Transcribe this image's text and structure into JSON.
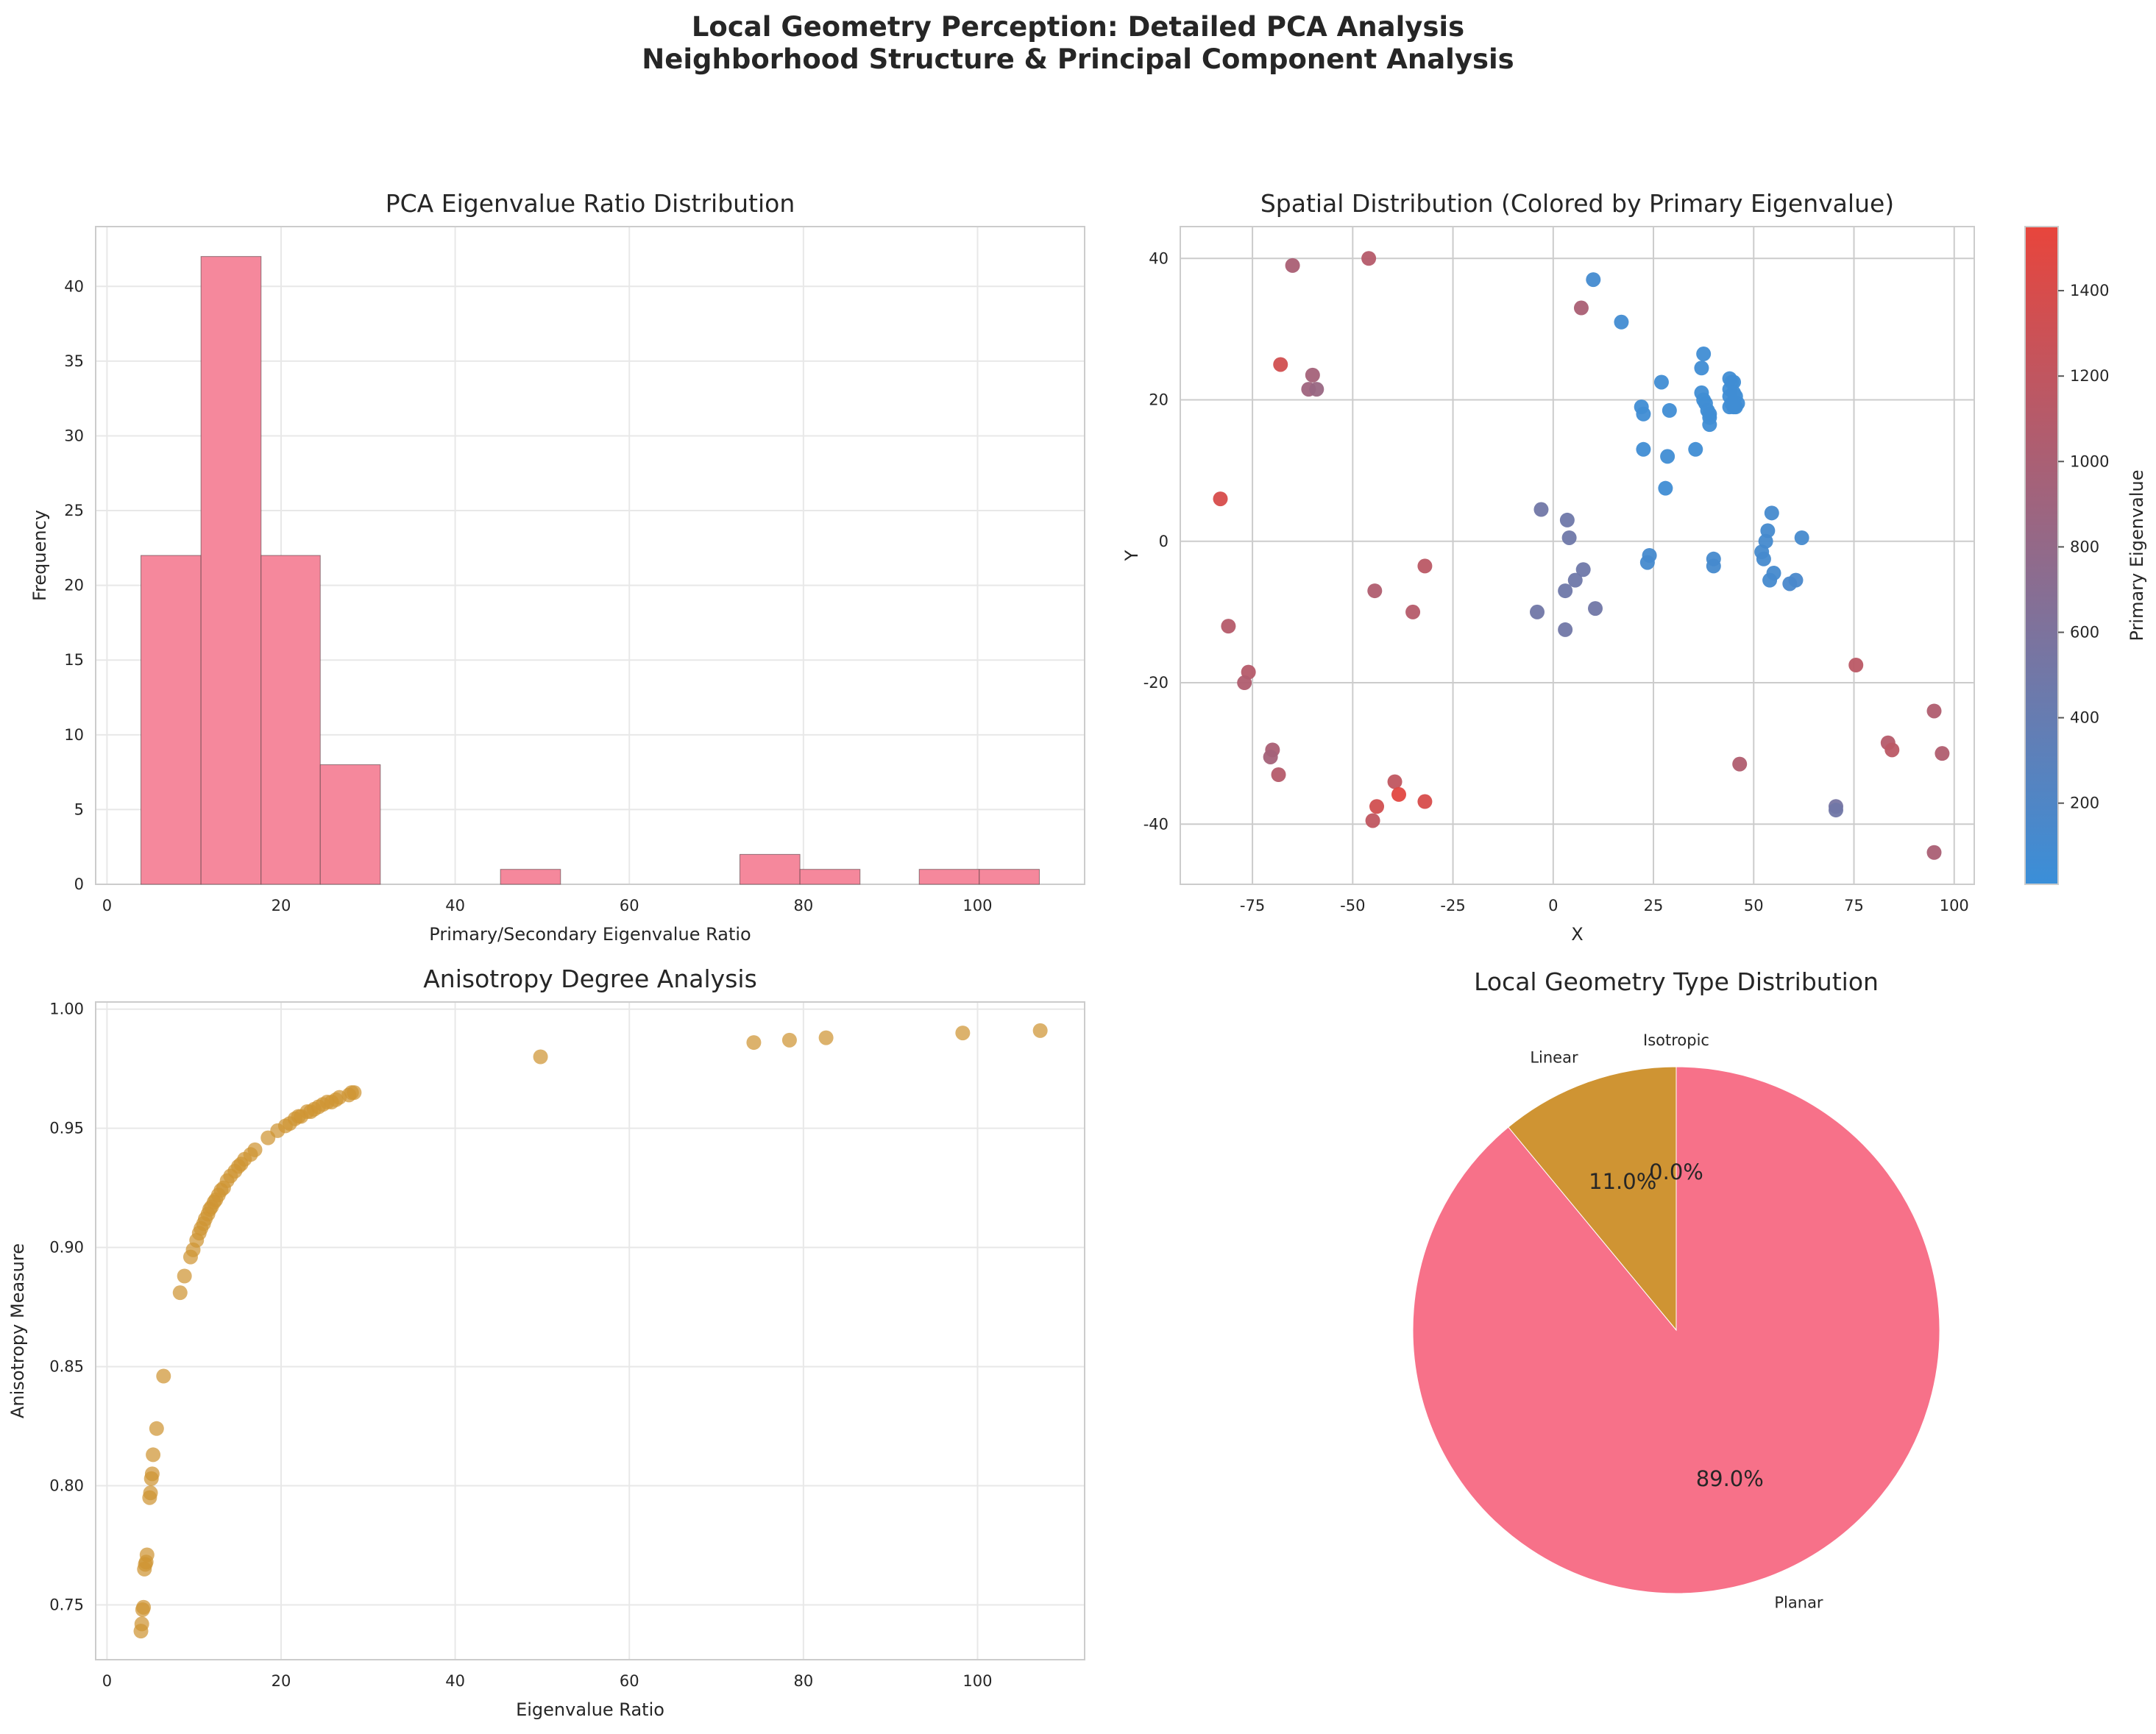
{
  "figure": {
    "title_line1": "Local Geometry Perception: Detailed PCA Analysis",
    "title_line2": "Neighborhood Structure & Principal Component Analysis"
  },
  "chart_data": [
    {
      "type": "bar",
      "title": "PCA Eigenvalue Ratio Distribution",
      "xlabel": "Primary/Secondary Eigenvalue Ratio",
      "ylabel": "Frequency",
      "color": "#f5889c",
      "bin_edges": [
        3.9,
        10.8,
        17.7,
        24.5,
        31.4,
        38.3,
        45.2,
        52.1,
        58.9,
        65.8,
        72.7,
        79.6,
        86.5,
        93.3,
        100.2,
        107.1
      ],
      "values": [
        22,
        42,
        22,
        8,
        0,
        0,
        1,
        0,
        0,
        0,
        2,
        1,
        0,
        1,
        1
      ],
      "xlim": [
        -1.3,
        112.3
      ],
      "ylim": [
        0,
        44
      ],
      "xticks": [
        0,
        20,
        40,
        60,
        80,
        100
      ],
      "yticks": [
        0,
        5,
        10,
        15,
        20,
        25,
        30,
        35,
        40
      ]
    },
    {
      "type": "scatter",
      "title": "Spatial Distribution (Colored by Primary Eigenvalue)",
      "xlabel": "X",
      "ylabel": "Y",
      "colorbar_label": "Primary Eigenvalue",
      "colorbar_ticks": [
        200,
        400,
        600,
        800,
        1000,
        1200,
        1400
      ],
      "colorbar_range": [
        10,
        1550
      ],
      "color_low": "#3a8fd9",
      "color_high": "#e8453c",
      "xlim": [
        -93,
        105
      ],
      "ylim": [
        -48.5,
        44.5
      ],
      "xticks": [
        -75,
        -50,
        -25,
        0,
        25,
        50,
        75,
        100
      ],
      "xtick_labels": [
        "-75",
        "-50",
        "-25",
        "0",
        "25",
        "50",
        "75",
        "100"
      ],
      "yticks": [
        -40,
        -20,
        0,
        20,
        40
      ],
      "points": [
        {
          "x": -65,
          "y": 39,
          "c": 1000
        },
        {
          "x": -46,
          "y": 40,
          "c": 1100
        },
        {
          "x": -68,
          "y": 25,
          "c": 1350
        },
        {
          "x": -60,
          "y": 23.5,
          "c": 950
        },
        {
          "x": -61,
          "y": 21.5,
          "c": 900
        },
        {
          "x": -59,
          "y": 21.5,
          "c": 850
        },
        {
          "x": -83,
          "y": 6,
          "c": 1400
        },
        {
          "x": -81,
          "y": -12,
          "c": 1100
        },
        {
          "x": -76,
          "y": -18.5,
          "c": 1100
        },
        {
          "x": -77,
          "y": -20,
          "c": 1050
        },
        {
          "x": -70,
          "y": -29.5,
          "c": 1000
        },
        {
          "x": -70.5,
          "y": -30.5,
          "c": 950
        },
        {
          "x": -68.5,
          "y": -33,
          "c": 1100
        },
        {
          "x": -44.5,
          "y": -7,
          "c": 1050
        },
        {
          "x": -35,
          "y": -10,
          "c": 1100
        },
        {
          "x": -32,
          "y": -3.5,
          "c": 1150
        },
        {
          "x": -39.5,
          "y": -34,
          "c": 1200
        },
        {
          "x": -38.5,
          "y": -35.8,
          "c": 1500
        },
        {
          "x": -44,
          "y": -37.5,
          "c": 1350
        },
        {
          "x": -45,
          "y": -39.5,
          "c": 1200
        },
        {
          "x": -32,
          "y": -36.8,
          "c": 1400
        },
        {
          "x": 7,
          "y": 33,
          "c": 1000
        },
        {
          "x": 10,
          "y": 37,
          "c": 100
        },
        {
          "x": 17,
          "y": 31,
          "c": 80
        },
        {
          "x": 37.5,
          "y": 26.5,
          "c": 60
        },
        {
          "x": 37,
          "y": 24.5,
          "c": 60
        },
        {
          "x": 27,
          "y": 22.5,
          "c": 60
        },
        {
          "x": 22,
          "y": 19,
          "c": 60
        },
        {
          "x": 22.5,
          "y": 18,
          "c": 60
        },
        {
          "x": 29,
          "y": 18.5,
          "c": 60
        },
        {
          "x": 37,
          "y": 21,
          "c": 60
        },
        {
          "x": 37.5,
          "y": 20,
          "c": 60
        },
        {
          "x": 38,
          "y": 19.5,
          "c": 60
        },
        {
          "x": 38.5,
          "y": 18.5,
          "c": 60
        },
        {
          "x": 39,
          "y": 18,
          "c": 60
        },
        {
          "x": 39,
          "y": 17.5,
          "c": 60
        },
        {
          "x": 39,
          "y": 16.5,
          "c": 60
        },
        {
          "x": 44,
          "y": 23,
          "c": 60
        },
        {
          "x": 44.5,
          "y": 22.5,
          "c": 60
        },
        {
          "x": 45,
          "y": 22.5,
          "c": 60
        },
        {
          "x": 44,
          "y": 21.5,
          "c": 60
        },
        {
          "x": 45,
          "y": 21,
          "c": 60
        },
        {
          "x": 44,
          "y": 20.5,
          "c": 60
        },
        {
          "x": 45.5,
          "y": 20.5,
          "c": 60
        },
        {
          "x": 44.5,
          "y": 19.5,
          "c": 60
        },
        {
          "x": 45,
          "y": 19,
          "c": 60
        },
        {
          "x": 44,
          "y": 19,
          "c": 60
        },
        {
          "x": 45.5,
          "y": 19,
          "c": 60
        },
        {
          "x": 46,
          "y": 19.5,
          "c": 60
        },
        {
          "x": 22.5,
          "y": 13,
          "c": 60
        },
        {
          "x": 28.5,
          "y": 12,
          "c": 60
        },
        {
          "x": 35.5,
          "y": 13,
          "c": 60
        },
        {
          "x": 28,
          "y": 7.5,
          "c": 60
        },
        {
          "x": -3,
          "y": 4.5,
          "c": 500
        },
        {
          "x": 3.5,
          "y": 3,
          "c": 480
        },
        {
          "x": 4,
          "y": 0.5,
          "c": 480
        },
        {
          "x": 7.5,
          "y": -4,
          "c": 480
        },
        {
          "x": 5.5,
          "y": -5.5,
          "c": 480
        },
        {
          "x": 3,
          "y": -7,
          "c": 480
        },
        {
          "x": 10.5,
          "y": -9.5,
          "c": 500
        },
        {
          "x": -4,
          "y": -10,
          "c": 500
        },
        {
          "x": 3,
          "y": -12.5,
          "c": 500
        },
        {
          "x": 24,
          "y": -2,
          "c": 120
        },
        {
          "x": 23.5,
          "y": -3,
          "c": 120
        },
        {
          "x": 40,
          "y": -2.5,
          "c": 120
        },
        {
          "x": 40,
          "y": -3.5,
          "c": 120
        },
        {
          "x": 54.5,
          "y": 4,
          "c": 120
        },
        {
          "x": 53.5,
          "y": 1.5,
          "c": 120
        },
        {
          "x": 53,
          "y": 0,
          "c": 120
        },
        {
          "x": 62,
          "y": 0.5,
          "c": 120
        },
        {
          "x": 52,
          "y": -1.5,
          "c": 120
        },
        {
          "x": 52.5,
          "y": -2.5,
          "c": 120
        },
        {
          "x": 55,
          "y": -4.5,
          "c": 120
        },
        {
          "x": 54,
          "y": -5.5,
          "c": 120
        },
        {
          "x": 60.5,
          "y": -5.5,
          "c": 150
        },
        {
          "x": 59,
          "y": -6,
          "c": 150
        },
        {
          "x": 75.5,
          "y": -17.5,
          "c": 1150
        },
        {
          "x": 95,
          "y": -24,
          "c": 1050
        },
        {
          "x": 83.5,
          "y": -28.5,
          "c": 1100
        },
        {
          "x": 84.5,
          "y": -29.5,
          "c": 1150
        },
        {
          "x": 97,
          "y": -30,
          "c": 1050
        },
        {
          "x": 46.5,
          "y": -31.5,
          "c": 1050
        },
        {
          "x": 70.5,
          "y": -37.5,
          "c": 550
        },
        {
          "x": 70.5,
          "y": -38,
          "c": 500
        },
        {
          "x": 95,
          "y": -44,
          "c": 1000
        }
      ]
    },
    {
      "type": "scatter",
      "title": "Anisotropy Degree Analysis",
      "xlabel": "Eigenvalue Ratio",
      "ylabel": "Anisotropy Measure",
      "color": "#cf9433",
      "xlim": [
        -1.3,
        112.3
      ],
      "ylim": [
        0.727,
        1.003
      ],
      "xticks": [
        0,
        20,
        40,
        60,
        80,
        100
      ],
      "yticks": [
        0.75,
        0.8,
        0.85,
        0.9,
        0.95,
        1.0
      ],
      "ytick_labels": [
        "0.75",
        "0.80",
        "0.85",
        "0.90",
        "0.95",
        "1.00"
      ],
      "points": [
        {
          "x": 3.9,
          "y": 0.739
        },
        {
          "x": 4.0,
          "y": 0.742
        },
        {
          "x": 4.1,
          "y": 0.748
        },
        {
          "x": 4.2,
          "y": 0.749
        },
        {
          "x": 4.3,
          "y": 0.765
        },
        {
          "x": 4.4,
          "y": 0.767
        },
        {
          "x": 4.5,
          "y": 0.768
        },
        {
          "x": 4.6,
          "y": 0.771
        },
        {
          "x": 4.9,
          "y": 0.795
        },
        {
          "x": 5.0,
          "y": 0.797
        },
        {
          "x": 5.1,
          "y": 0.803
        },
        {
          "x": 5.2,
          "y": 0.805
        },
        {
          "x": 5.3,
          "y": 0.813
        },
        {
          "x": 5.7,
          "y": 0.824
        },
        {
          "x": 6.5,
          "y": 0.846
        },
        {
          "x": 8.4,
          "y": 0.881
        },
        {
          "x": 8.9,
          "y": 0.888
        },
        {
          "x": 9.6,
          "y": 0.896
        },
        {
          "x": 9.9,
          "y": 0.899
        },
        {
          "x": 10.3,
          "y": 0.903
        },
        {
          "x": 10.6,
          "y": 0.906
        },
        {
          "x": 10.8,
          "y": 0.908
        },
        {
          "x": 11.1,
          "y": 0.91
        },
        {
          "x": 11.3,
          "y": 0.912
        },
        {
          "x": 11.6,
          "y": 0.914
        },
        {
          "x": 11.8,
          "y": 0.916
        },
        {
          "x": 12.0,
          "y": 0.917
        },
        {
          "x": 12.3,
          "y": 0.919
        },
        {
          "x": 12.5,
          "y": 0.92
        },
        {
          "x": 12.8,
          "y": 0.922
        },
        {
          "x": 13.1,
          "y": 0.924
        },
        {
          "x": 13.4,
          "y": 0.925
        },
        {
          "x": 13.8,
          "y": 0.928
        },
        {
          "x": 14.2,
          "y": 0.93
        },
        {
          "x": 14.7,
          "y": 0.932
        },
        {
          "x": 15.1,
          "y": 0.934
        },
        {
          "x": 15.4,
          "y": 0.935
        },
        {
          "x": 15.8,
          "y": 0.937
        },
        {
          "x": 16.5,
          "y": 0.939
        },
        {
          "x": 17.0,
          "y": 0.941
        },
        {
          "x": 18.5,
          "y": 0.946
        },
        {
          "x": 19.6,
          "y": 0.949
        },
        {
          "x": 20.5,
          "y": 0.951
        },
        {
          "x": 21.0,
          "y": 0.952
        },
        {
          "x": 21.6,
          "y": 0.954
        },
        {
          "x": 22.0,
          "y": 0.955
        },
        {
          "x": 22.3,
          "y": 0.955
        },
        {
          "x": 23.0,
          "y": 0.957
        },
        {
          "x": 23.4,
          "y": 0.957
        },
        {
          "x": 23.8,
          "y": 0.958
        },
        {
          "x": 24.3,
          "y": 0.959
        },
        {
          "x": 24.8,
          "y": 0.96
        },
        {
          "x": 25.3,
          "y": 0.961
        },
        {
          "x": 25.8,
          "y": 0.961
        },
        {
          "x": 26.3,
          "y": 0.962
        },
        {
          "x": 26.7,
          "y": 0.963
        },
        {
          "x": 27.8,
          "y": 0.964
        },
        {
          "x": 28.1,
          "y": 0.965
        },
        {
          "x": 28.4,
          "y": 0.965
        },
        {
          "x": 49.8,
          "y": 0.98
        },
        {
          "x": 74.3,
          "y": 0.986
        },
        {
          "x": 78.4,
          "y": 0.987
        },
        {
          "x": 82.6,
          "y": 0.988
        },
        {
          "x": 98.3,
          "y": 0.99
        },
        {
          "x": 107.2,
          "y": 0.991
        }
      ]
    },
    {
      "type": "pie",
      "title": "Local Geometry Type Distribution",
      "slices": [
        {
          "label": "Linear",
          "value": 11.0,
          "pct_label": "11.0%",
          "color": "#cf9433"
        },
        {
          "label": "Planar",
          "value": 89.0,
          "pct_label": "89.0%",
          "color": "#f77189"
        },
        {
          "label": "Isotropic",
          "value": 0.0,
          "pct_label": "0.0%",
          "color": "#50b131"
        }
      ]
    }
  ]
}
